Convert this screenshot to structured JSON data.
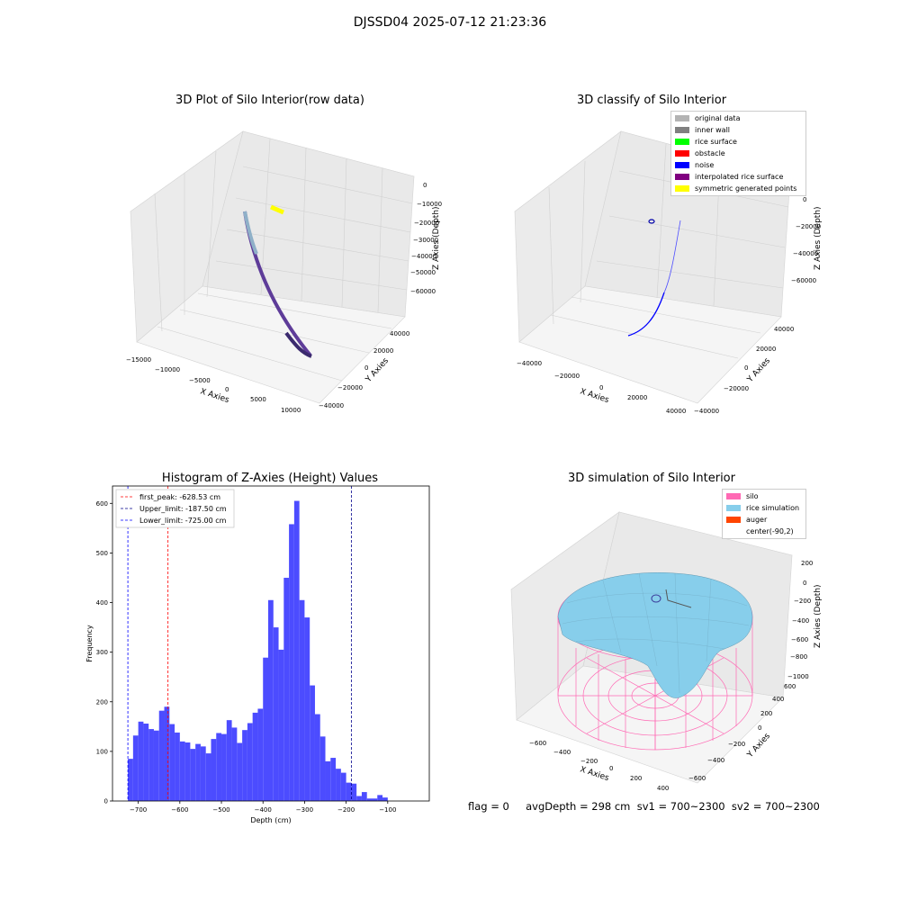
{
  "suptitle": "DJSSD04 2025-07-12 21:23:36",
  "flag_text": "flag = 0     avgDepth = 298 cm  sv1 = 700~2300  sv2 = 700~2300",
  "colors": {
    "histogram_bar": "#4c4cff",
    "first_peak_line": "#ff0000",
    "upper_limit_line": "#00008b",
    "lower_limit_line": "#0000ff",
    "silo": "#ff69b4",
    "rice_simulation": "#87ceeb",
    "auger": "#ff4500"
  },
  "panels": {
    "raw": {
      "title": "3D Plot of Silo Interior(row data)",
      "xlabel": "X Axies",
      "ylabel": "Y Axies",
      "zlabel": "Z Axies (Depth)",
      "xticks": [
        "−15000",
        "−10000",
        "−5000",
        "0",
        "5000",
        "10000"
      ],
      "yticks": [
        "−40000",
        "−20000",
        "0",
        "20000",
        "40000"
      ],
      "zticks": [
        "0",
        "−10000",
        "−20000",
        "−30000",
        "−40000",
        "−50000",
        "−60000"
      ]
    },
    "classify": {
      "title": "3D classify of Silo Interior",
      "xlabel": "X Axies",
      "ylabel": "Y Axies",
      "zlabel": "Z Axies (Depth)",
      "xticks": [
        "−40000",
        "−20000",
        "0",
        "20000",
        "40000"
      ],
      "yticks": [
        "−40000",
        "−20000",
        "0",
        "20000",
        "40000"
      ],
      "zticks": [
        "0",
        "−20000",
        "−40000",
        "−60000"
      ],
      "legend": [
        {
          "label": "original data",
          "color": "#b3b3b3"
        },
        {
          "label": "inner wall",
          "color": "#808080"
        },
        {
          "label": "rice surface",
          "color": "#00ff00"
        },
        {
          "label": "obstacle",
          "color": "#ff0000"
        },
        {
          "label": "noise",
          "color": "#0000ff"
        },
        {
          "label": "interpolated rice surface",
          "color": "#800080"
        },
        {
          "label": "symmetric generated points",
          "color": "#ffff00"
        }
      ]
    },
    "sim": {
      "title": "3D simulation of Silo Interior",
      "xlabel": "X Axies",
      "ylabel": "Y Axies",
      "zlabel": "Z Axies (Depth)",
      "xticks": [
        "−600",
        "−400",
        "−200",
        "0",
        "200",
        "400"
      ],
      "yticks": [
        "−600",
        "−400",
        "−200",
        "0",
        "200",
        "400",
        "600"
      ],
      "zticks": [
        "200",
        "0",
        "−200",
        "−400",
        "−600",
        "−800",
        "−1000"
      ],
      "legend": [
        {
          "label": "silo",
          "color": "#ff69b4"
        },
        {
          "label": "rice simulation",
          "color": "#87ceeb"
        },
        {
          "label": "auger",
          "color": "#ff4500"
        },
        {
          "label": "center(-90,2)",
          "color": ""
        }
      ]
    }
  },
  "chart_data": [
    {
      "type": "histogram",
      "title": "Histogram of Z-Axies (Height) Values",
      "xlabel": "Depth (cm)",
      "ylabel": "Frequency",
      "xlim": [
        -762,
        0
      ],
      "ylim": [
        0,
        635
      ],
      "xticks": [
        -700,
        -600,
        -500,
        -400,
        -300,
        -200,
        -100
      ],
      "yticks": [
        0,
        100,
        200,
        300,
        400,
        500,
        600
      ],
      "bin_start": -725,
      "bin_width": 12.5,
      "values": [
        85,
        132,
        160,
        156,
        145,
        142,
        182,
        190,
        155,
        138,
        120,
        118,
        105,
        115,
        110,
        96,
        125,
        137,
        135,
        163,
        148,
        117,
        143,
        157,
        178,
        186,
        289,
        405,
        350,
        305,
        450,
        558,
        605,
        405,
        370,
        233,
        175,
        130,
        80,
        87,
        65,
        57,
        37,
        35,
        10,
        18,
        5,
        5,
        12,
        7
      ],
      "vlines": [
        {
          "label": "first_peak: -628.53 cm",
          "x": -628.53,
          "color": "#ff0000"
        },
        {
          "label": "Upper_limit: -187.50 cm",
          "x": -187.5,
          "color": "#00008b"
        },
        {
          "label": "Lower_limit: -725.00 cm",
          "x": -725.0,
          "color": "#0000ff"
        }
      ],
      "grid": false,
      "legend_position": "top-left"
    }
  ]
}
